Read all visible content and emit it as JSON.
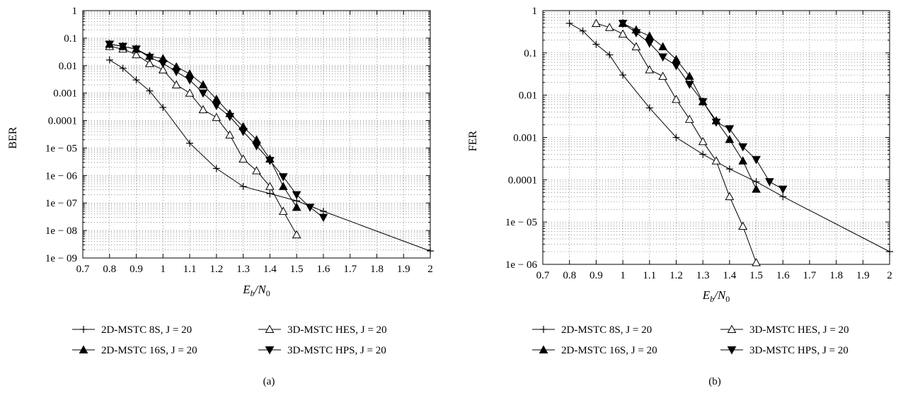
{
  "chart_data": [
    {
      "type": "line",
      "panel_label": "(a)",
      "ylabel": "BER",
      "xlabel": {
        "main": "E",
        "sub1": "b",
        "sep": "/N",
        "sub2": "0"
      },
      "xlim": [
        0.7,
        2
      ],
      "ylim": [
        1e-09,
        1
      ],
      "yscale": "log",
      "grid": true,
      "x_ticks": [
        "0.7",
        "0.8",
        "0.9",
        "1",
        "1.1",
        "1.2",
        "1.3",
        "1.4",
        "1.5",
        "1.6",
        "1.7",
        "1.8",
        "1.9",
        "2"
      ],
      "y_ticks": [
        "1e − 09",
        "1e − 08",
        "1e − 07",
        "1e − 06",
        "1e − 05",
        "0.0001",
        "0.001",
        "0.01",
        "0.1",
        "1"
      ],
      "legend_position": "below",
      "series": [
        {
          "name": "2D-MSTC 8S, J = 20",
          "marker": "plus",
          "x": [
            0.8,
            0.85,
            0.9,
            0.95,
            1.0,
            1.1,
            1.2,
            1.3,
            1.4,
            1.5,
            1.6,
            2.0
          ],
          "y": [
            0.016,
            0.008,
            0.003,
            0.0012,
            0.0003,
            1.5e-05,
            1.8e-06,
            4e-07,
            2.2e-07,
            1.2e-07,
            5e-08,
            1.8e-09
          ]
        },
        {
          "name": "3D-MSTC HES, J = 20",
          "marker": "triangle-open",
          "x": [
            0.8,
            0.85,
            0.9,
            0.95,
            1.0,
            1.05,
            1.1,
            1.15,
            1.2,
            1.25,
            1.3,
            1.35,
            1.4,
            1.45,
            1.5
          ],
          "y": [
            0.05,
            0.04,
            0.025,
            0.012,
            0.007,
            0.002,
            0.001,
            0.00025,
            0.00013,
            3e-05,
            4e-06,
            1.5e-06,
            4e-07,
            5e-08,
            7e-09
          ]
        },
        {
          "name": "2D-MSTC 16S, J = 20",
          "marker": "triangle-filled",
          "x": [
            0.8,
            0.85,
            0.9,
            0.95,
            1.0,
            1.05,
            1.1,
            1.15,
            1.2,
            1.25,
            1.3,
            1.35,
            1.4,
            1.45,
            1.5
          ],
          "y": [
            0.06,
            0.05,
            0.04,
            0.022,
            0.018,
            0.009,
            0.005,
            0.002,
            0.0006,
            0.00018,
            6e-05,
            2e-05,
            4e-06,
            4e-07,
            7e-08
          ]
        },
        {
          "name": "3D-MSTC HPS, J = 20",
          "marker": "triangle-down-filled",
          "x": [
            0.8,
            0.85,
            0.9,
            0.95,
            1.0,
            1.05,
            1.1,
            1.15,
            1.2,
            1.25,
            1.3,
            1.35,
            1.4,
            1.45,
            1.5,
            1.55,
            1.6
          ],
          "y": [
            0.06,
            0.05,
            0.04,
            0.02,
            0.012,
            0.006,
            0.003,
            0.001,
            0.00035,
            0.00014,
            4e-05,
            1.2e-05,
            3.5e-06,
            9e-07,
            2e-07,
            7e-08,
            3e-08
          ]
        }
      ]
    },
    {
      "type": "line",
      "panel_label": "(b)",
      "ylabel": "FER",
      "xlabel": {
        "main": "E",
        "sub1": "b",
        "sep": "/N",
        "sub2": "0"
      },
      "xlim": [
        0.7,
        2
      ],
      "ylim": [
        1e-06,
        1
      ],
      "yscale": "log",
      "grid": true,
      "x_ticks": [
        "0.7",
        "0.8",
        "0.9",
        "1",
        "1.1",
        "1.2",
        "1.3",
        "1.4",
        "1.5",
        "1.6",
        "1.7",
        "1.8",
        "1.9",
        "2"
      ],
      "y_ticks": [
        "1e − 06",
        "1e − 05",
        "0.0001",
        "0.001",
        "0.01",
        "0.1",
        "1"
      ],
      "legend_position": "below",
      "series": [
        {
          "name": "2D-MSTC 8S, J = 20",
          "marker": "plus",
          "x": [
            0.8,
            0.85,
            0.9,
            0.95,
            1.0,
            1.1,
            1.2,
            1.3,
            1.4,
            1.5,
            1.6,
            2.0
          ],
          "y": [
            0.5,
            0.33,
            0.16,
            0.09,
            0.03,
            0.005,
            0.001,
            0.0004,
            0.00018,
            9e-05,
            4e-05,
            2e-06
          ]
        },
        {
          "name": "3D-MSTC HES, J = 20",
          "marker": "triangle-open",
          "x": [
            0.9,
            0.95,
            1.0,
            1.05,
            1.1,
            1.15,
            1.2,
            1.25,
            1.3,
            1.35,
            1.4,
            1.45,
            1.5
          ],
          "y": [
            0.5,
            0.4,
            0.28,
            0.14,
            0.04,
            0.028,
            0.008,
            0.0027,
            0.0008,
            0.00028,
            4e-05,
            8e-06,
            1.1e-06
          ]
        },
        {
          "name": "2D-MSTC 16S, J = 20",
          "marker": "triangle-filled",
          "x": [
            1.0,
            1.05,
            1.1,
            1.15,
            1.2,
            1.25,
            1.3,
            1.35,
            1.4,
            1.45,
            1.5
          ],
          "y": [
            0.5,
            0.35,
            0.25,
            0.14,
            0.07,
            0.028,
            0.007,
            0.0025,
            0.0009,
            0.00028,
            6e-05
          ]
        },
        {
          "name": "3D-MSTC HPS, J = 20",
          "marker": "triangle-down-filled",
          "x": [
            1.0,
            1.05,
            1.1,
            1.15,
            1.2,
            1.25,
            1.3,
            1.35,
            1.4,
            1.45,
            1.5,
            1.55,
            1.6
          ],
          "y": [
            0.5,
            0.3,
            0.17,
            0.08,
            0.05,
            0.018,
            0.007,
            0.0023,
            0.0016,
            0.0006,
            0.0003,
            9e-05,
            6e-05
          ]
        }
      ]
    }
  ]
}
